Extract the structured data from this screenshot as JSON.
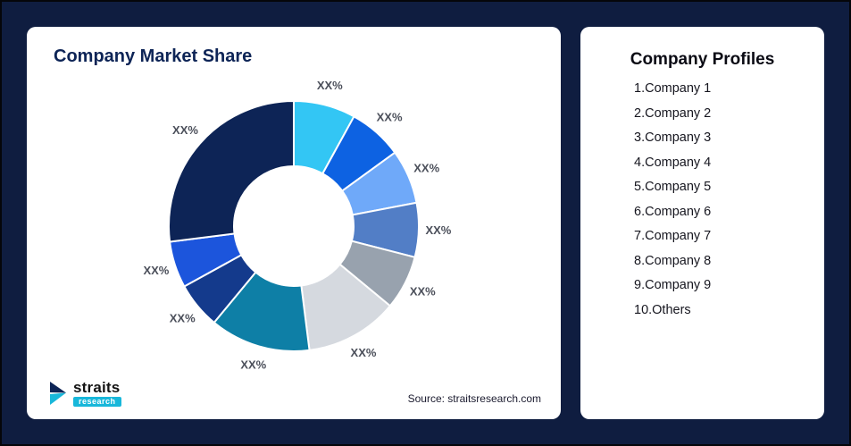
{
  "page": {
    "background_color": "#0F1D40",
    "card_color": "#FFFFFF"
  },
  "left_card": {
    "title": "Company Market Share",
    "source": "Source: straitsresearch.com",
    "logo": {
      "name": "straits",
      "sub": "research",
      "accent_color": "#18B7DA"
    }
  },
  "right_card": {
    "title": "Company Profiles",
    "items": [
      "1.Company 1",
      "2.Company 2",
      "3.Company 3",
      "4.Company 4",
      "5.Company 5",
      "6.Company 6",
      "7.Company 7",
      "8.Company 8",
      "9.Company 9",
      "10.Others"
    ]
  },
  "chart_data": {
    "type": "pie",
    "donut": true,
    "title": "Company Market Share",
    "labels": [
      "XX%",
      "XX%",
      "XX%",
      "XX%",
      "XX%",
      "XX%",
      "XX%",
      "XX%",
      "XX%",
      "XX%"
    ],
    "values": [
      8,
      7,
      7,
      7,
      7,
      12,
      13,
      6,
      6,
      27
    ],
    "colors": [
      "#33C6F4",
      "#0D62E2",
      "#6FA9F9",
      "#527EC6",
      "#98A2AE",
      "#D5D9DF",
      "#0E7FA6",
      "#143A8C",
      "#1C55DC",
      "#0D2456"
    ],
    "start_angle_deg": 0,
    "clockwise": true,
    "inner_radius_ratio": 0.48,
    "label_color": "#4B4F5A",
    "legend": "none",
    "source": "Source: straitsresearch.com"
  }
}
